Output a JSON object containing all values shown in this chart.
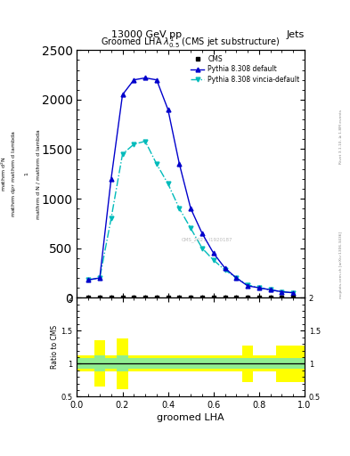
{
  "title_top": "13000 GeV pp",
  "title_right": "Jets",
  "plot_title": "Groomed LHA $\\lambda^{1}_{0.5}$ (CMS jet substructure)",
  "right_label1": "Rivet 3.1.10, ≥ 1.8M events",
  "right_label2": "mcplots.cern.ch [arXiv:1306.3436]",
  "watermark": "CMS_2021_I1920187",
  "xlabel": "groomed LHA",
  "xlim": [
    0,
    1.0
  ],
  "ylim_main": [
    0,
    2500
  ],
  "ylim_ratio": [
    0.5,
    2.0
  ],
  "yticks_main": [
    0,
    500,
    1000,
    1500,
    2000,
    2500
  ],
  "yticks_ratio": [
    0.5,
    1.0,
    1.5,
    2.0
  ],
  "cms_x": [
    0.05,
    0.1,
    0.15,
    0.2,
    0.25,
    0.3,
    0.35,
    0.4,
    0.45,
    0.5,
    0.55,
    0.6,
    0.65,
    0.7,
    0.75,
    0.8,
    0.85,
    0.9,
    0.95
  ],
  "cms_y": [
    2,
    2,
    2,
    2,
    2,
    2,
    2,
    2,
    2,
    2,
    2,
    2,
    2,
    2,
    2,
    2,
    2,
    2,
    2
  ],
  "pythia_default_x": [
    0.05,
    0.1,
    0.15,
    0.2,
    0.25,
    0.3,
    0.35,
    0.4,
    0.45,
    0.5,
    0.55,
    0.6,
    0.65,
    0.7,
    0.75,
    0.8,
    0.85,
    0.9,
    0.95
  ],
  "pythia_default_y": [
    180,
    200,
    1200,
    2050,
    2200,
    2220,
    2200,
    1900,
    1350,
    900,
    650,
    450,
    300,
    200,
    120,
    100,
    80,
    60,
    50
  ],
  "pythia_vincia_x": [
    0.05,
    0.1,
    0.15,
    0.2,
    0.25,
    0.3,
    0.35,
    0.4,
    0.45,
    0.5,
    0.55,
    0.6,
    0.65,
    0.7,
    0.75,
    0.8,
    0.85,
    0.9,
    0.95
  ],
  "pythia_vincia_y": [
    180,
    200,
    800,
    1450,
    1550,
    1580,
    1350,
    1150,
    900,
    700,
    500,
    380,
    280,
    200,
    130,
    100,
    80,
    60,
    50
  ],
  "color_default": "#0000CC",
  "color_vincia": "#00BBBB",
  "ratio_x_edges": [
    0.0,
    0.075,
    0.125,
    0.175,
    0.225,
    0.275,
    0.325,
    0.375,
    0.425,
    0.475,
    0.525,
    0.575,
    0.625,
    0.675,
    0.725,
    0.775,
    0.875,
    1.0
  ],
  "ratio_yellow_lows": [
    0.88,
    0.65,
    0.88,
    0.62,
    0.88,
    0.88,
    0.88,
    0.88,
    0.88,
    0.88,
    0.88,
    0.88,
    0.88,
    0.88,
    0.72,
    0.88,
    0.72
  ],
  "ratio_yellow_highs": [
    1.12,
    1.35,
    1.12,
    1.38,
    1.12,
    1.12,
    1.12,
    1.12,
    1.12,
    1.12,
    1.12,
    1.12,
    1.12,
    1.12,
    1.28,
    1.12,
    1.28
  ],
  "ratio_green_lows": [
    0.92,
    0.88,
    0.92,
    0.88,
    0.92,
    0.92,
    0.92,
    0.92,
    0.92,
    0.92,
    0.92,
    0.92,
    0.92,
    0.92,
    0.92,
    0.92,
    0.92
  ],
  "ratio_green_highs": [
    1.08,
    1.12,
    1.08,
    1.12,
    1.08,
    1.08,
    1.08,
    1.08,
    1.08,
    1.08,
    1.08,
    1.08,
    1.08,
    1.08,
    1.08,
    1.08,
    1.08
  ]
}
